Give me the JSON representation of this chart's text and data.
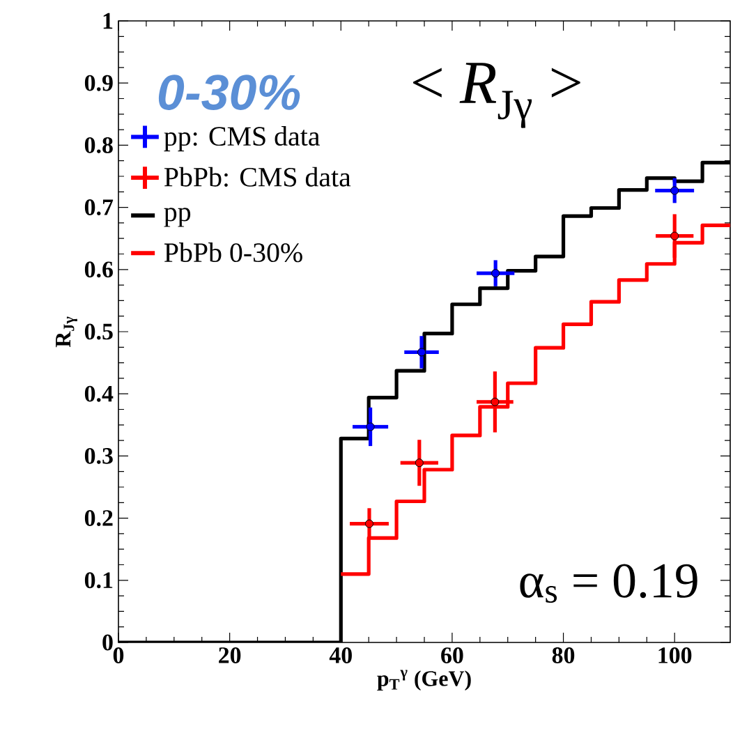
{
  "chart_data": {
    "type": "step",
    "title": "< *R*$_{Jγ}$ >",
    "xlabel": "p$_{T}$$^{γ}$ (GeV)",
    "ylabel": "R$_{Jγ}$",
    "annotations": [
      "0-30%",
      "α$_{s}$ = 0.19"
    ],
    "xlim": [
      0,
      110
    ],
    "ylim": [
      0,
      1
    ],
    "xticks": [
      0,
      20,
      40,
      60,
      80,
      100
    ],
    "yticks": [
      0,
      0.1,
      0.2,
      0.3,
      0.4,
      0.5,
      0.6,
      0.7,
      0.8,
      0.9,
      1
    ],
    "legend": "top left",
    "marker": "none",
    "series": [
      {
        "name": "pp: CMS data",
        "type": "scatter",
        "marker": "circle",
        "color": "#0000ff",
        "x": [
          45.3,
          54.5,
          67.8,
          100
        ],
        "values": [
          0.347,
          0.467,
          0.594,
          0.727
        ],
        "errors": [
          0.031,
          0.026,
          0.021,
          0.02
        ],
        "xerrors": [
          3.2,
          3.1,
          3.4,
          3.5
        ]
      },
      {
        "name": "PbPb: CMS data",
        "type": "scatter",
        "marker": "circle",
        "color": "#ff0000",
        "x": [
          45.1,
          54.1,
          67.7,
          100
        ],
        "values": [
          0.191,
          0.289,
          0.387,
          0.654
        ],
        "errors": [
          0.025,
          0.037,
          0.049,
          0.035
        ],
        "xerrors": [
          3.5,
          3.4,
          3.3,
          3.4
        ]
      },
      {
        "name": "pp",
        "color": "#000000",
        "x": [
          0,
          40,
          45,
          50,
          55,
          60,
          65,
          70,
          75,
          80,
          85,
          90,
          95,
          100,
          105,
          110
        ],
        "values": [
          0,
          0.328,
          0.394,
          0.437,
          0.497,
          0.544,
          0.57,
          0.598,
          0.621,
          0.686,
          0.699,
          0.728,
          0.747,
          0.742,
          0.772,
          0.772
        ]
      },
      {
        "name": "PbPb 0-30%",
        "color": "#ff0000",
        "x": [
          40,
          45,
          50,
          55,
          60,
          65,
          70,
          75,
          80,
          85,
          90,
          95,
          100,
          105,
          110
        ],
        "values": [
          0.11,
          0.168,
          0.227,
          0.278,
          0.333,
          0.379,
          0.417,
          0.474,
          0.512,
          0.548,
          0.583,
          0.609,
          0.643,
          0.671,
          0.671
        ]
      }
    ]
  }
}
